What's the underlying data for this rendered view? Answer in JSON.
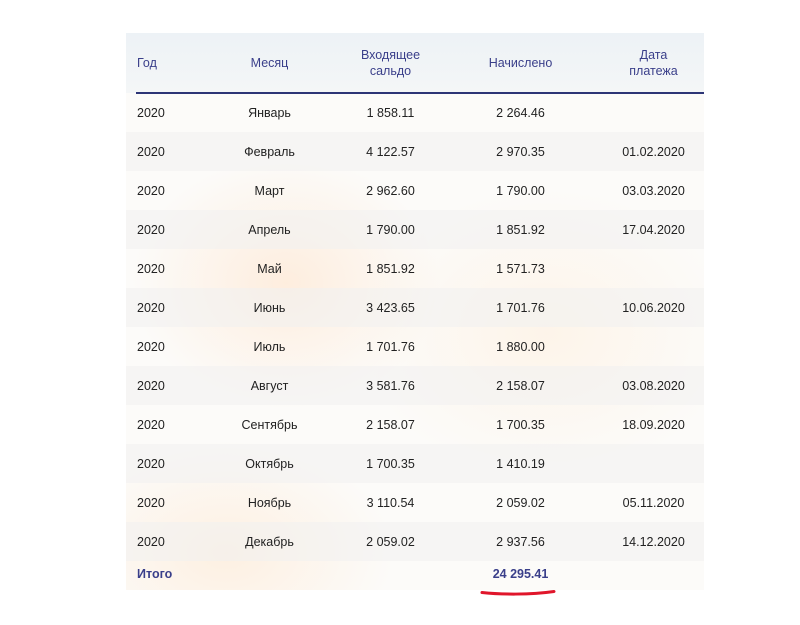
{
  "table": {
    "headers": {
      "year": "Год",
      "month": "Месяц",
      "incoming_line1": "Входящее",
      "incoming_line2": "сальдо",
      "accrued": "Начислено",
      "payment_line1": "Дата",
      "payment_line2": "платежа"
    },
    "rows": [
      {
        "year": "2020",
        "month": "Январь",
        "incoming": "1 858.11",
        "accrued": "2 264.46",
        "payment_date": ""
      },
      {
        "year": "2020",
        "month": "Февраль",
        "incoming": "4 122.57",
        "accrued": "2 970.35",
        "payment_date": "01.02.2020"
      },
      {
        "year": "2020",
        "month": "Март",
        "incoming": "2 962.60",
        "accrued": "1 790.00",
        "payment_date": "03.03.2020"
      },
      {
        "year": "2020",
        "month": "Апрель",
        "incoming": "1 790.00",
        "accrued": "1 851.92",
        "payment_date": "17.04.2020"
      },
      {
        "year": "2020",
        "month": "Май",
        "incoming": "1 851.92",
        "accrued": "1 571.73",
        "payment_date": ""
      },
      {
        "year": "2020",
        "month": "Июнь",
        "incoming": "3 423.65",
        "accrued": "1 701.76",
        "payment_date": "10.06.2020"
      },
      {
        "year": "2020",
        "month": "Июль",
        "incoming": "1 701.76",
        "accrued": "1 880.00",
        "payment_date": ""
      },
      {
        "year": "2020",
        "month": "Август",
        "incoming": "3 581.76",
        "accrued": "2 158.07",
        "payment_date": "03.08.2020"
      },
      {
        "year": "2020",
        "month": "Сентябрь",
        "incoming": "2 158.07",
        "accrued": "1 700.35",
        "payment_date": "18.09.2020"
      },
      {
        "year": "2020",
        "month": "Октябрь",
        "incoming": "1 700.35",
        "accrued": "1 410.19",
        "payment_date": ""
      },
      {
        "year": "2020",
        "month": "Ноябрь",
        "incoming": "3 110.54",
        "accrued": "2 059.02",
        "payment_date": "05.11.2020"
      },
      {
        "year": "2020",
        "month": "Декабрь",
        "incoming": "2 059.02",
        "accrued": "2 937.56",
        "payment_date": "14.12.2020"
      }
    ],
    "total": {
      "label": "Итого",
      "value": "24 295.41"
    }
  },
  "colors": {
    "header_text": "#3a3f8a",
    "header_rule": "#2d3576",
    "body_text": "#222222",
    "highlight_underline": "#e0162b"
  }
}
